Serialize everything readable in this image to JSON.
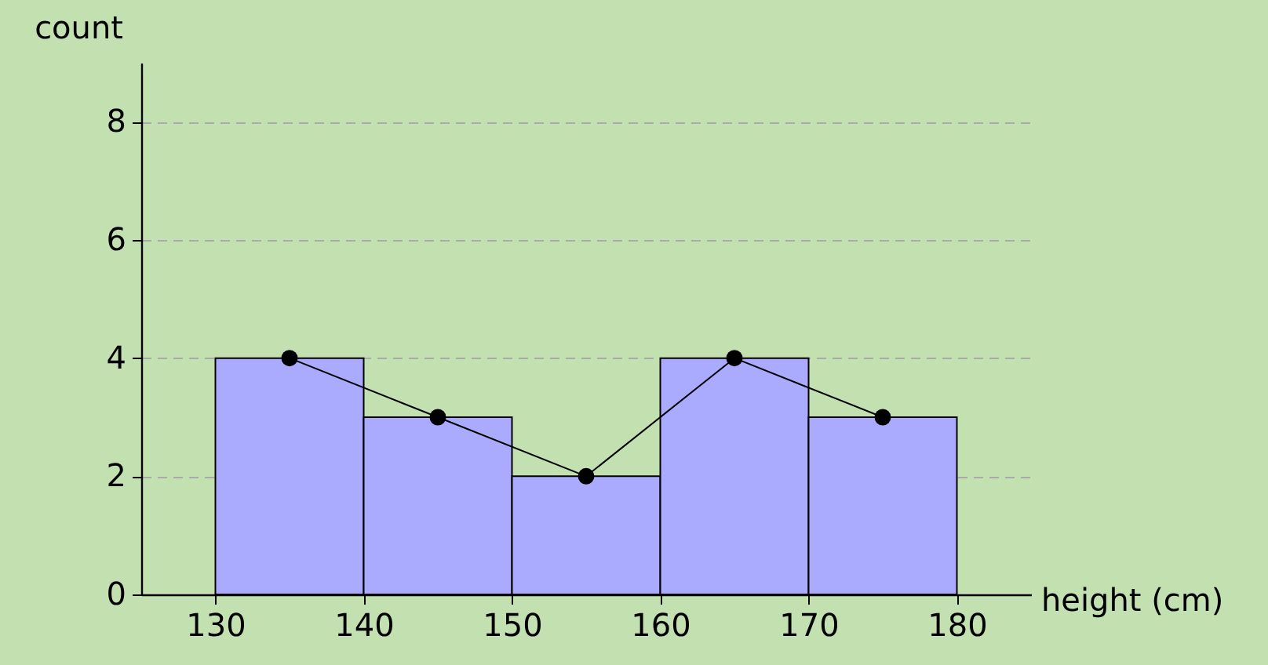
{
  "chart_data": {
    "type": "histogram",
    "xlabel": "height (cm)",
    "ylabel": "count",
    "bins": [
      130,
      140,
      150,
      160,
      170,
      180
    ],
    "values": [
      4,
      3,
      2,
      4,
      3
    ],
    "color": "#aaaaff",
    "series": [
      {
        "type": "line",
        "x": [
          135,
          145,
          155,
          165,
          175
        ],
        "values": [
          4,
          3,
          2,
          4,
          3
        ],
        "color": "#000000",
        "marker": "circle"
      }
    ],
    "xlim": [
      125,
      185
    ],
    "ylim": [
      0,
      9
    ],
    "xticks": [
      130,
      140,
      150,
      160,
      170,
      180
    ],
    "yticks": [
      0,
      2,
      4,
      6,
      8
    ],
    "grid": "y"
  }
}
